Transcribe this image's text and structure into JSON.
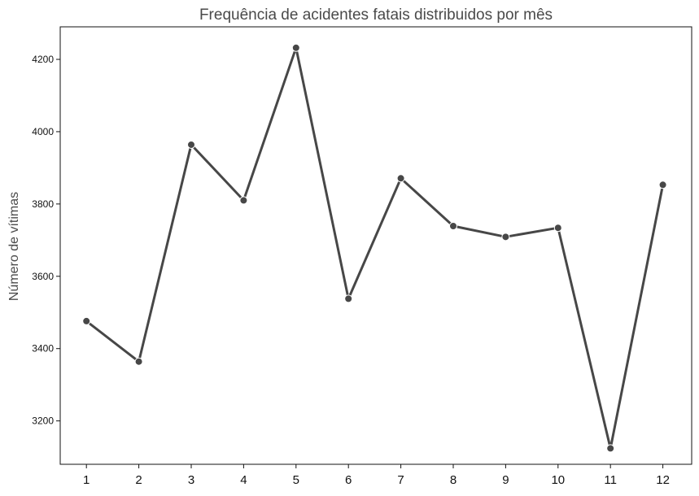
{
  "chart_data": {
    "type": "line",
    "title": "Frequência de acidentes fatais distribuidos por mês",
    "xlabel": "",
    "ylabel": "Número de vítimas",
    "x": [
      1,
      2,
      3,
      4,
      5,
      6,
      7,
      8,
      9,
      10,
      11,
      12
    ],
    "values": [
      3476,
      3364,
      3964,
      3810,
      4232,
      3538,
      3871,
      3739,
      3709,
      3734,
      3124,
      3853
    ],
    "xticks": [
      "1",
      "2",
      "3",
      "4",
      "5",
      "6",
      "7",
      "8",
      "9",
      "10",
      "11",
      "12"
    ],
    "yticks": [
      3200,
      3400,
      3600,
      3800,
      4000,
      4200
    ],
    "xlim": [
      0.5,
      12.55
    ],
    "ylim": [
      3080,
      4290
    ],
    "grid": false,
    "colors": {
      "line": "#474747",
      "marker": "#474747",
      "marker_edge": "#ffffff",
      "axes": "#111111"
    }
  }
}
